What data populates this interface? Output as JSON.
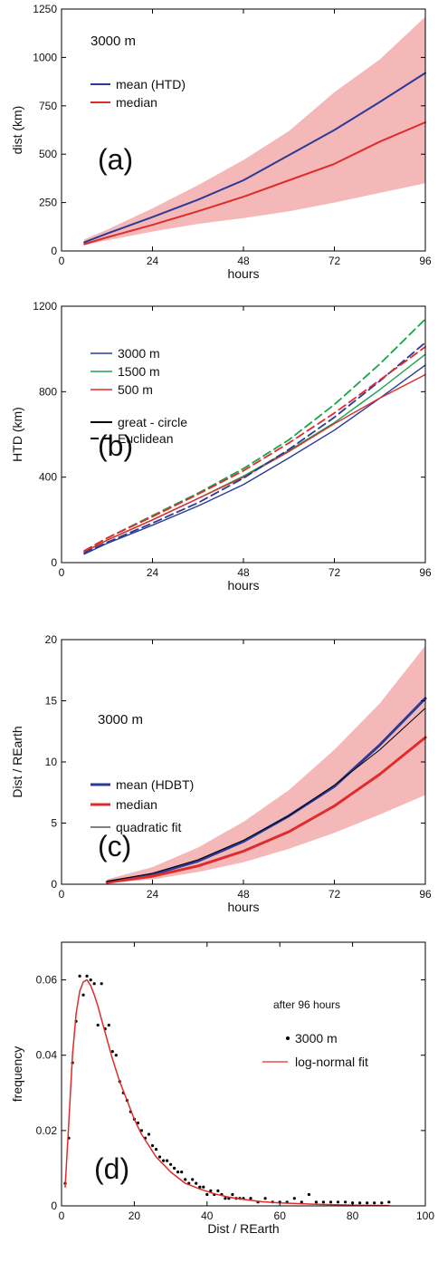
{
  "chart_data": [
    {
      "id": "a",
      "type": "line",
      "panel_label": "(a)",
      "annotation": "3000 m",
      "xlabel": "hours",
      "ylabel": "dist (km)",
      "xlim": [
        0,
        96
      ],
      "ylim": [
        0,
        1250
      ],
      "xticks": [
        0,
        24,
        48,
        72,
        96
      ],
      "yticks": [
        0,
        250,
        500,
        750,
        1000,
        1250
      ],
      "legend": "top-left",
      "band": {
        "color": "#f4b8b8",
        "x": [
          6,
          12,
          24,
          36,
          48,
          60,
          72,
          84,
          96
        ],
        "lower": [
          30,
          55,
          100,
          140,
          170,
          205,
          250,
          300,
          350
        ],
        "upper": [
          60,
          110,
          220,
          340,
          470,
          620,
          820,
          990,
          1210
        ]
      },
      "series": [
        {
          "name": "mean  (HTD)",
          "color": "#2b3a96",
          "width": 2,
          "dash": "",
          "x": [
            6,
            12,
            24,
            36,
            48,
            60,
            72,
            84,
            96
          ],
          "y": [
            45,
            90,
            175,
            265,
            365,
            495,
            625,
            770,
            920
          ]
        },
        {
          "name": "median",
          "color": "#e02b2b",
          "width": 2,
          "dash": "",
          "x": [
            6,
            12,
            24,
            36,
            48,
            60,
            72,
            84,
            96
          ],
          "y": [
            35,
            70,
            135,
            205,
            280,
            365,
            450,
            565,
            665
          ]
        }
      ]
    },
    {
      "id": "b",
      "type": "line",
      "panel_label": "(b)",
      "annotation": "",
      "xlabel": "hours",
      "ylabel": "HTD (km)",
      "xlim": [
        0,
        96
      ],
      "ylim": [
        0,
        1200
      ],
      "xticks": [
        0,
        24,
        48,
        72,
        96
      ],
      "yticks": [
        0,
        400,
        800,
        1200
      ],
      "legend": "top-left",
      "legend_styles": [
        {
          "name": "great - circle",
          "color": "#000000",
          "dash": ""
        },
        {
          "name": "Euclidean",
          "color": "#000000",
          "dash": "9,5"
        }
      ],
      "series": [
        {
          "name": "3000 m",
          "color": "#2b3a96",
          "width": 1.4,
          "dash": "",
          "x": [
            6,
            12,
            24,
            36,
            48,
            60,
            72,
            84,
            96
          ],
          "y": [
            40,
            90,
            175,
            265,
            365,
            490,
            620,
            770,
            925
          ]
        },
        {
          "name": "1500 m",
          "color": "#1aa34a",
          "width": 1.4,
          "dash": "",
          "x": [
            6,
            12,
            24,
            36,
            48,
            60,
            72,
            84,
            96
          ],
          "y": [
            50,
            105,
            200,
            300,
            405,
            525,
            655,
            810,
            975
          ]
        },
        {
          "name": "500 m",
          "color": "#e02b2b",
          "width": 1.4,
          "dash": "",
          "x": [
            6,
            12,
            24,
            36,
            48,
            60,
            72,
            84,
            96
          ],
          "y": [
            50,
            105,
            200,
            300,
            400,
            520,
            650,
            770,
            880
          ]
        },
        {
          "name": "",
          "color": "#2b3a96",
          "width": 1.8,
          "dash": "9,5",
          "x": [
            6,
            12,
            24,
            36,
            48,
            60,
            72,
            84,
            96
          ],
          "y": [
            45,
            95,
            185,
            280,
            395,
            530,
            680,
            850,
            1030
          ]
        },
        {
          "name": "",
          "color": "#1aa34a",
          "width": 1.8,
          "dash": "9,5",
          "x": [
            6,
            12,
            24,
            36,
            48,
            60,
            72,
            84,
            96
          ],
          "y": [
            55,
            115,
            220,
            325,
            440,
            575,
            740,
            930,
            1140
          ]
        },
        {
          "name": "",
          "color": "#e02b2b",
          "width": 1.8,
          "dash": "9,5",
          "x": [
            6,
            12,
            24,
            36,
            48,
            60,
            72,
            84,
            96
          ],
          "y": [
            55,
            115,
            215,
            320,
            430,
            560,
            700,
            855,
            1010
          ]
        }
      ]
    },
    {
      "id": "c",
      "type": "line",
      "panel_label": "(c)",
      "annotation": "3000 m",
      "xlabel": "hours",
      "ylabel": "Dist / REarth",
      "xlim": [
        0,
        96
      ],
      "ylim": [
        0,
        20
      ],
      "xticks": [
        0,
        24,
        48,
        72,
        96
      ],
      "yticks": [
        0,
        5,
        10,
        15,
        20
      ],
      "legend": "top-left",
      "band": {
        "color": "#f4b8b8",
        "x": [
          12,
          24,
          36,
          48,
          60,
          72,
          84,
          96
        ],
        "lower": [
          0.1,
          0.4,
          1.0,
          1.8,
          2.9,
          4.2,
          5.7,
          7.3
        ],
        "upper": [
          0.4,
          1.4,
          3.0,
          5.1,
          7.7,
          11.0,
          14.8,
          19.5
        ]
      },
      "series": [
        {
          "name": "mean  (HDBT)",
          "color": "#2b3a96",
          "width": 3,
          "dash": "",
          "x": [
            12,
            24,
            36,
            48,
            60,
            72,
            84,
            96
          ],
          "y": [
            0.2,
            0.8,
            1.9,
            3.5,
            5.6,
            8.0,
            11.4,
            15.2
          ]
        },
        {
          "name": "median",
          "color": "#e02b2b",
          "width": 3,
          "dash": "",
          "x": [
            12,
            24,
            36,
            48,
            60,
            72,
            84,
            96
          ],
          "y": [
            0.15,
            0.65,
            1.5,
            2.7,
            4.3,
            6.4,
            9.0,
            12.0
          ]
        },
        {
          "name": "quadratic fit",
          "color": "#000000",
          "width": 1,
          "dash": "",
          "x": [
            12,
            24,
            36,
            48,
            60,
            72,
            84,
            96
          ],
          "y": [
            0.22,
            0.9,
            2.0,
            3.6,
            5.6,
            8.1,
            11.0,
            14.4
          ]
        }
      ]
    },
    {
      "id": "d",
      "type": "scatter",
      "panel_label": "(d)",
      "annotation": "after 96 hours",
      "xlabel": "Dist / REarth",
      "ylabel": "frequency",
      "xlim": [
        0,
        100
      ],
      "ylim": [
        0,
        0.07
      ],
      "xticks": [
        0,
        20,
        40,
        60,
        80,
        100
      ],
      "yticks": [
        0,
        0.02,
        0.04,
        0.06
      ],
      "legend": "right",
      "series": [
        {
          "name": "3000 m",
          "color": "#000000",
          "x": [
            1,
            2,
            3,
            4,
            5,
            6,
            7,
            8,
            9,
            10,
            11,
            12,
            13,
            14,
            15,
            16,
            17,
            18,
            19,
            20,
            21,
            22,
            23,
            24,
            25,
            26,
            27,
            28,
            29,
            30,
            31,
            32,
            33,
            34,
            35,
            36,
            37,
            38,
            39,
            40,
            41,
            42,
            43,
            44,
            45,
            46,
            47,
            48,
            49,
            50,
            52,
            54,
            56,
            58,
            60,
            62,
            64,
            66,
            68,
            70,
            72,
            74,
            76,
            78,
            80,
            82,
            84,
            86,
            88,
            90
          ],
          "y": [
            0.006,
            0.018,
            0.038,
            0.049,
            0.061,
            0.056,
            0.061,
            0.06,
            0.059,
            0.048,
            0.059,
            0.047,
            0.048,
            0.041,
            0.04,
            0.033,
            0.03,
            0.028,
            0.025,
            0.023,
            0.022,
            0.02,
            0.018,
            0.019,
            0.016,
            0.015,
            0.013,
            0.012,
            0.012,
            0.011,
            0.01,
            0.009,
            0.009,
            0.007,
            0.006,
            0.007,
            0.006,
            0.005,
            0.005,
            0.003,
            0.004,
            0.003,
            0.004,
            0.003,
            0.002,
            0.002,
            0.003,
            0.002,
            0.002,
            0.002,
            0.002,
            0.001,
            0.002,
            0.001,
            0.001,
            0.001,
            0.002,
            0.001,
            0.003,
            0.001,
            0.001,
            0.001,
            0.001,
            0.001,
            0.0008,
            0.0008,
            0.0008,
            0.0008,
            0.0008,
            0.001
          ]
        },
        {
          "name": "log-normal fit",
          "color": "#e02b2b",
          "x": [
            1,
            2,
            3,
            4,
            5,
            6,
            7,
            8,
            9,
            10,
            12,
            14,
            16,
            18,
            20,
            22,
            24,
            26,
            28,
            30,
            34,
            38,
            42,
            46,
            50,
            55,
            60,
            70,
            80,
            90
          ],
          "y": [
            0.005,
            0.022,
            0.04,
            0.051,
            0.057,
            0.0595,
            0.06,
            0.0585,
            0.056,
            0.053,
            0.046,
            0.039,
            0.033,
            0.028,
            0.023,
            0.019,
            0.016,
            0.013,
            0.011,
            0.009,
            0.006,
            0.0045,
            0.0032,
            0.0023,
            0.0017,
            0.0011,
            0.0008,
            0.0004,
            0.0002,
            0.0001
          ]
        }
      ]
    }
  ]
}
